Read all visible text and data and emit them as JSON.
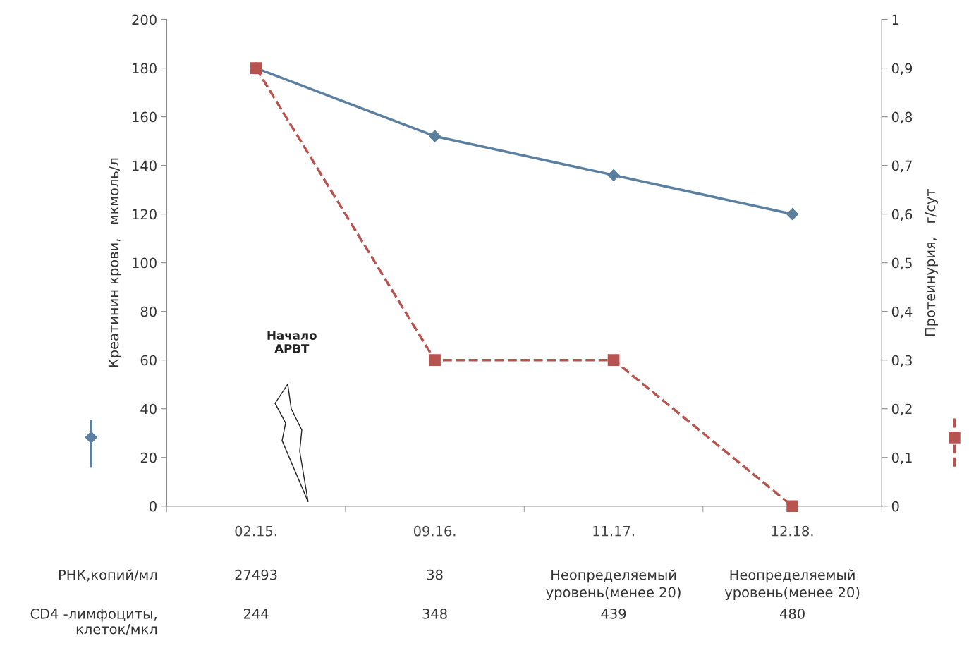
{
  "chart_data": {
    "type": "line",
    "categories": [
      "02.15.",
      "09.16.",
      "11.17.",
      "12.18."
    ],
    "series": [
      {
        "color": "#5b7f9e",
        "values": [
          180,
          152,
          136,
          120
        ],
        "marker": "diamond",
        "line_style": "solid"
      },
      {
        "color": "#b85450",
        "values": [
          0.9,
          0.3,
          0.3,
          0
        ],
        "marker": "square",
        "line_style": "dashed",
        "axis": "y2"
      }
    ],
    "ylabel": "Креатинин крови,   мкмоль/л",
    "y2label": "Протеинурия,   г/сут",
    "ylim": [
      0,
      200
    ],
    "yticks": [
      0,
      20,
      40,
      60,
      80,
      100,
      120,
      140,
      160,
      180,
      200
    ],
    "y2lim": [
      0,
      1
    ],
    "y2ticks": [
      0,
      {
        "value": 0.1,
        "label": "0,1"
      },
      {
        "value": 0.2,
        "label": "0,2"
      },
      {
        "value": 0.3,
        "label": "0,3"
      },
      {
        "value": 0.4,
        "label": "0,4"
      },
      {
        "value": 0.5,
        "label": "0,5"
      },
      {
        "value": 0.6,
        "label": "0,6"
      },
      {
        "value": 0.7,
        "label": "0,7"
      },
      {
        "value": 0.8,
        "label": "0,8"
      },
      {
        "value": 0.9,
        "label": "0,9"
      },
      1
    ],
    "grid": false,
    "legend": false,
    "annotations": [
      "Начало\nАРВТ",
      "РНК,копий/мл",
      "27493",
      "38",
      "Неопределяемый\nуровень(менее 20)",
      "Неопределяемый\nуровень(менее 20)",
      "CD4 -лимфоциты,\nклеток/мкл",
      "244",
      "348",
      "439",
      "480"
    ]
  }
}
